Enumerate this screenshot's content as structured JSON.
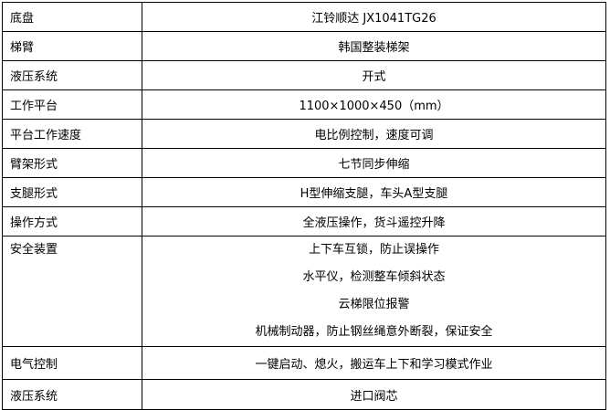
{
  "rows": [
    {
      "label": "底盘",
      "value": "江铃顺达 JX1041TG26"
    },
    {
      "label": "梯臂",
      "value": "韩国整装梯架"
    },
    {
      "label": "液压系统",
      "value": "开式"
    },
    {
      "label": "工作平台",
      "value": "1100×1000×450（mm）"
    },
    {
      "label": "平台工作速度",
      "value": "电比例控制，速度可调"
    },
    {
      "label": "臂架形式",
      "value": "七节同步伸缩"
    },
    {
      "label": "支腿形式",
      "value": "H型伸缩支腿，车头A型支腿"
    },
    {
      "label": "操作方式",
      "value": "全液压操作，货斗遥控升降"
    }
  ],
  "safety": {
    "label": "安全装置",
    "values": [
      "上下车互锁，防止误操作",
      "水平仪，检测整车倾斜状态",
      "云梯限位报警",
      "机械制动器，防止钢丝绳意外断裂，保证安全"
    ]
  },
  "rows2": [
    {
      "label": "电气控制",
      "value": "一键启动、熄火，搬运车上下和学习模式作业"
    },
    {
      "label": "液压系统",
      "value": "进口阀芯"
    }
  ]
}
